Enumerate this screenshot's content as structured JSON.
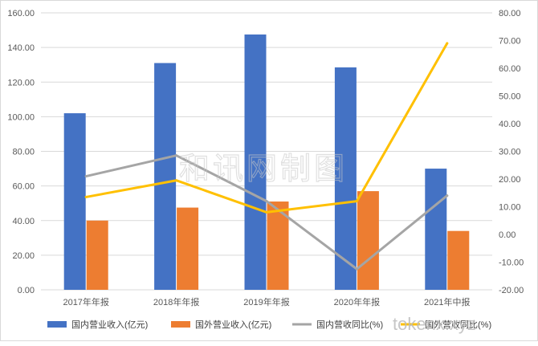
{
  "chart_data": {
    "type": "bar",
    "categories": [
      "2017年年报",
      "2018年年报",
      "2019年年报",
      "2020年年报",
      "2021年中报"
    ],
    "series": [
      {
        "name": "国内营业收入(亿元)",
        "kind": "bar",
        "axis": "left",
        "color": "#4472C4",
        "values": [
          102.0,
          131.0,
          147.5,
          128.5,
          70.0
        ]
      },
      {
        "name": "国外营业收入(亿元)",
        "kind": "bar",
        "axis": "left",
        "color": "#ED7D31",
        "values": [
          40.0,
          47.5,
          51.0,
          57.0,
          34.0
        ]
      },
      {
        "name": "国内营收同比(%)",
        "kind": "line",
        "axis": "right",
        "color": "#A5A5A5",
        "values": [
          21.0,
          28.5,
          12.0,
          -12.5,
          14.0
        ]
      },
      {
        "name": "国外营收同比(%)",
        "kind": "line",
        "axis": "right",
        "color": "#FFC000",
        "values": [
          13.5,
          19.5,
          8.0,
          12.0,
          69.0
        ]
      }
    ],
    "y_left": {
      "min": 0,
      "max": 160,
      "step": 20,
      "tick_labels": [
        "0.00",
        "20.00",
        "40.00",
        "60.00",
        "80.00",
        "100.00",
        "120.00",
        "140.00",
        "160.00"
      ]
    },
    "y_right": {
      "min": -20,
      "max": 80,
      "step": 10,
      "tick_labels": [
        "-20.00",
        "-10.00",
        "0.00",
        "10.00",
        "20.00",
        "30.00",
        "40.00",
        "50.00",
        "60.00",
        "70.00",
        "80.00"
      ]
    },
    "grid": true,
    "legend_position": "bottom"
  },
  "watermark": {
    "cn": "和讯网制图",
    "url": "tokenx.xyz"
  }
}
